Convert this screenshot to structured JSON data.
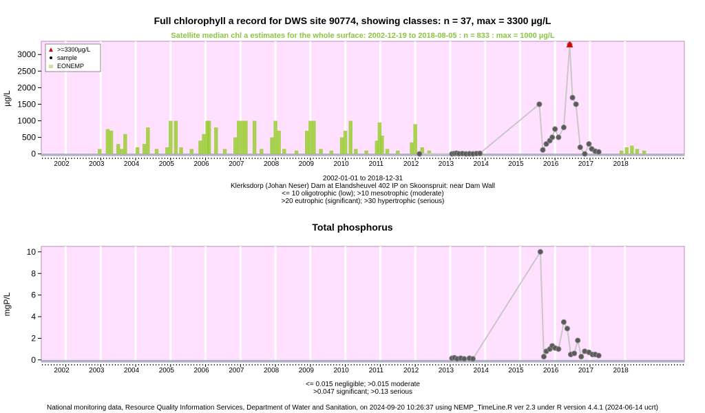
{
  "top": {
    "title": "Full chlorophyll a record for DWS site 90774, showing classes: n = 37, max = 3300 µg/L",
    "subtitle": "Satellite median chl a estimates for the whole surface: 2002-12-19 to 2018-08-05 : n = 833 : max = 1000 µg/L",
    "caption": [
      "2002-01-01 to 2018-12-31",
      "Klerksdorp (Johan Neser) Dam at Elandsheuvel 402 IP on Skoonspruit: near Dam Wall",
      "<= 10 oligotrophic (low); >10 mesotrophic (moderate)",
      ">20 eutrophic (significant); >30 hypertrophic (serious)"
    ]
  },
  "bottom": {
    "title": "Total phosphorus",
    "caption": [
      "<= 0.015 negligible; >0.015 moderate",
      ">0.047 significant; >0.13 serious"
    ]
  },
  "footer": "National monitoring data, Resource Quality Information Services, Department of Water and Sanitation, on 2024-09-20 10:26:37 using NEMP_TimeLine.R ver 2.3 under R version 4.4.1 (2024-06-14 ucrt)",
  "colors": {
    "panel_bg": "#ffe0ff",
    "satellite": "#9acd32",
    "sample_point": "#5a5a5a",
    "connect_line": "#c8c8c8",
    "max_marker": "#e00000",
    "negligible_band": "#a9b4c8"
  },
  "chart_data": [
    {
      "type": "scatter",
      "title": "Full chlorophyll a record for DWS site 90774, showing classes: n = 37, max = 3300 µg/L",
      "ylabel": "µg/L",
      "xlim": [
        2001.3,
        2019.7
      ],
      "ylim": [
        -50,
        3400
      ],
      "yticks": [
        0,
        500,
        1000,
        1500,
        2000,
        2500,
        3000
      ],
      "xticks": [
        2002,
        2003,
        2004,
        2005,
        2006,
        2007,
        2008,
        2009,
        2010,
        2011,
        2012,
        2013,
        2014,
        2015,
        2016,
        2017,
        2018
      ],
      "legend": {
        "position": "top-left",
        "entries": [
          ">=3300µg/L",
          "sample",
          "EONEMP"
        ]
      },
      "series": [
        {
          "name": "sample",
          "x": [
            2012.12,
            2013.05,
            2013.12,
            2013.18,
            2013.25,
            2013.35,
            2013.45,
            2013.55,
            2013.65,
            2013.75,
            2013.85,
            2015.55,
            2015.65,
            2015.75,
            2015.85,
            2015.92,
            2016.0,
            2016.1,
            2016.25,
            2016.42,
            2016.5,
            2016.6,
            2016.72,
            2016.85,
            2016.97,
            2017.05,
            2017.15,
            2017.25
          ],
          "y": [
            0,
            0,
            10,
            20,
            5,
            10,
            0,
            5,
            0,
            10,
            15,
            1500,
            120,
            300,
            400,
            500,
            750,
            500,
            800,
            3300,
            1700,
            1500,
            200,
            0,
            300,
            150,
            80,
            60
          ]
        },
        {
          "name": ">=3300µg/L",
          "x": [
            2016.42
          ],
          "y": [
            3300
          ]
        },
        {
          "name": "EONEMP",
          "x": [
            2002.97,
            2003.2,
            2003.3,
            2003.5,
            2003.6,
            2003.7,
            2004.05,
            2004.25,
            2004.35,
            2004.6,
            2004.9,
            2005.0,
            2005.15,
            2005.3,
            2005.6,
            2005.85,
            2005.95,
            2006.05,
            2006.1,
            2006.3,
            2006.55,
            2006.85,
            2006.95,
            2007.05,
            2007.15,
            2007.4,
            2007.6,
            2007.9,
            2008.0,
            2008.1,
            2008.25,
            2008.6,
            2008.9,
            2009.0,
            2009.1,
            2009.3,
            2009.6,
            2009.9,
            2010.0,
            2010.15,
            2010.3,
            2010.6,
            2010.9,
            2010.98,
            2011.05,
            2011.2,
            2011.5,
            2011.9,
            2012.0,
            2012.2,
            2012.4,
            2017.9,
            2018.05,
            2018.2,
            2018.35,
            2018.55
          ],
          "y": [
            150,
            750,
            700,
            300,
            150,
            600,
            200,
            300,
            800,
            150,
            200,
            1000,
            1000,
            200,
            150,
            400,
            600,
            1000,
            1000,
            800,
            150,
            500,
            1000,
            1000,
            1000,
            1000,
            150,
            500,
            1000,
            700,
            150,
            100,
            700,
            1000,
            1000,
            150,
            100,
            500,
            700,
            1000,
            150,
            100,
            400,
            950,
            550,
            150,
            100,
            350,
            900,
            200,
            100,
            100,
            200,
            250,
            150,
            100
          ]
        }
      ]
    },
    {
      "type": "scatter",
      "title": "Total phosphorus",
      "ylabel": "mgP/L",
      "xlim": [
        2001.3,
        2019.7
      ],
      "ylim": [
        -0.2,
        10.5
      ],
      "yticks": [
        0,
        2,
        4,
        6,
        8,
        10
      ],
      "xticks": [
        2002,
        2003,
        2004,
        2005,
        2006,
        2007,
        2008,
        2009,
        2010,
        2011,
        2012,
        2013,
        2014,
        2015,
        2016,
        2017,
        2018
      ],
      "series": [
        {
          "name": "sample",
          "x": [
            2013.05,
            2013.12,
            2013.2,
            2013.3,
            2013.4,
            2013.55,
            2013.65,
            2015.58,
            2015.68,
            2015.75,
            2015.85,
            2015.92,
            2016.0,
            2016.1,
            2016.25,
            2016.35,
            2016.45,
            2016.55,
            2016.65,
            2016.75,
            2016.85,
            2016.97,
            2017.07,
            2017.15,
            2017.25
          ],
          "y": [
            0.15,
            0.2,
            0.1,
            0.15,
            0.1,
            0.15,
            0.1,
            10.0,
            0.3,
            0.8,
            1.0,
            1.3,
            1.1,
            1.0,
            3.5,
            2.9,
            0.5,
            0.6,
            1.8,
            0.3,
            0.8,
            0.7,
            0.5,
            0.5,
            0.4
          ]
        }
      ]
    }
  ]
}
